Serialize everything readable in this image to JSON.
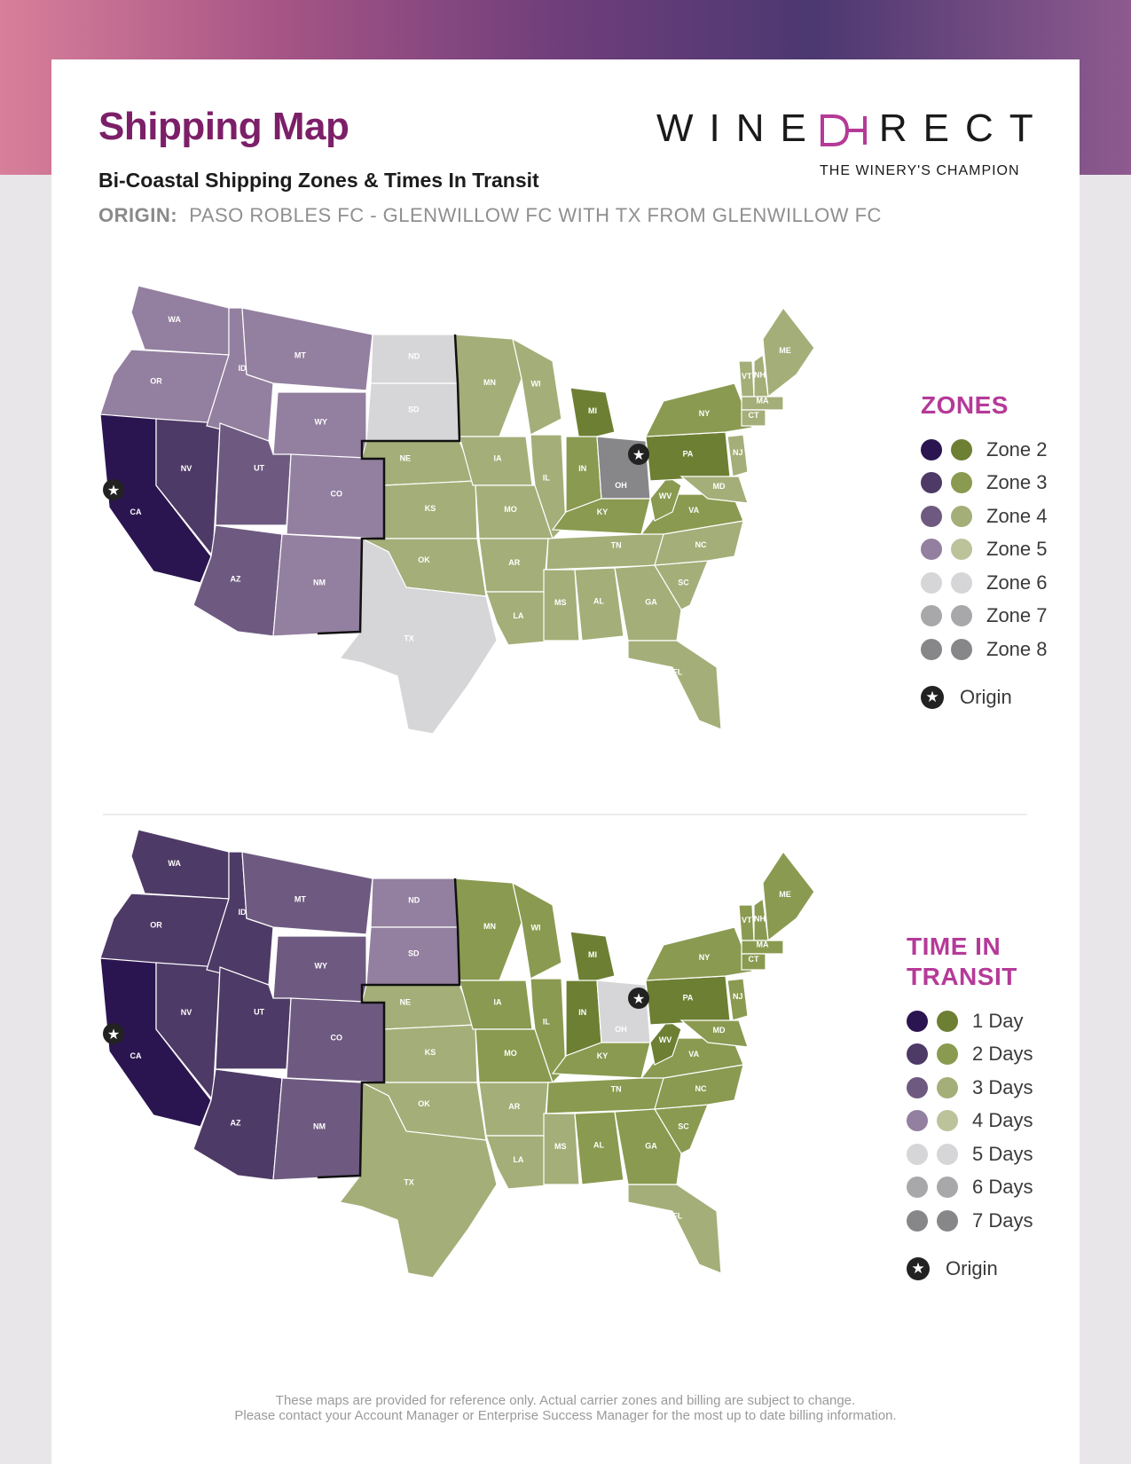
{
  "header": {
    "title": "Shipping Map",
    "subtitle": "Bi-Coastal Shipping Zones & Times In Transit",
    "origin_label": "ORIGIN:",
    "origin_value": "PASO ROBLES FC - GLENWILLOW FC WITH TX FROM GLENWILLOW FC",
    "logo_left": "WINE",
    "logo_right": "RECT",
    "tagline": "THE WINERY'S CHAMPION"
  },
  "colors": {
    "purple": [
      "#2b1550",
      "#4e3a66",
      "#6e5a80",
      "#937f9f"
    ],
    "green": [
      "#6d7f33",
      "#8a9a50",
      "#a4ae78",
      "#bcc39b"
    ],
    "gray": [
      "#d6d6d8",
      "#a8a8ab",
      "#87878a"
    ],
    "accent": "#b53a98",
    "title": "#7c1f68"
  },
  "zones_legend": {
    "title": "ZONES",
    "items": [
      {
        "label": "Zone 2",
        "left": "#2b1550",
        "right": "#6d7f33"
      },
      {
        "label": "Zone 3",
        "left": "#4e3a66",
        "right": "#8a9a50"
      },
      {
        "label": "Zone 4",
        "left": "#6e5a80",
        "right": "#a4ae78"
      },
      {
        "label": "Zone 5",
        "left": "#937f9f",
        "right": "#bcc39b"
      },
      {
        "label": "Zone 6",
        "left": "#d6d6d8",
        "right": "#d6d6d8"
      },
      {
        "label": "Zone 7",
        "left": "#a8a8ab",
        "right": "#a8a8ab"
      },
      {
        "label": "Zone 8",
        "left": "#87878a",
        "right": "#87878a"
      }
    ],
    "origin_label": "Origin"
  },
  "transit_legend": {
    "title": "TIME IN TRANSIT",
    "items": [
      {
        "label": "1 Day",
        "left": "#2b1550",
        "right": "#6d7f33"
      },
      {
        "label": "2 Days",
        "left": "#4e3a66",
        "right": "#8a9a50"
      },
      {
        "label": "3 Days",
        "left": "#6e5a80",
        "right": "#a4ae78"
      },
      {
        "label": "4 Days",
        "left": "#937f9f",
        "right": "#bcc39b"
      },
      {
        "label": "5 Days",
        "left": "#d6d6d8",
        "right": "#d6d6d8"
      },
      {
        "label": "6 Days",
        "left": "#a8a8ab",
        "right": "#a8a8ab"
      },
      {
        "label": "7 Days",
        "left": "#87878a",
        "right": "#87878a"
      }
    ],
    "origin_label": "Origin"
  },
  "zone_map": {
    "origins": [
      "CA",
      "OH"
    ],
    "states": [
      {
        "code": "WA",
        "zone": 5
      },
      {
        "code": "OR",
        "zone": 5
      },
      {
        "code": "CA",
        "zone": 2
      },
      {
        "code": "NV",
        "zone": 3
      },
      {
        "code": "ID",
        "zone": 5
      },
      {
        "code": "MT",
        "zone": 5
      },
      {
        "code": "WY",
        "zone": 5
      },
      {
        "code": "UT",
        "zone": 4
      },
      {
        "code": "AZ",
        "zone": 4
      },
      {
        "code": "CO",
        "zone": 5
      },
      {
        "code": "NM",
        "zone": 5
      },
      {
        "code": "ND",
        "zone": 6
      },
      {
        "code": "SD",
        "zone": 6
      },
      {
        "code": "NE",
        "zone": 4
      },
      {
        "code": "KS",
        "zone": 4
      },
      {
        "code": "OK",
        "zone": 4
      },
      {
        "code": "TX",
        "zone": 6
      },
      {
        "code": "MN",
        "zone": 4
      },
      {
        "code": "IA",
        "zone": 4
      },
      {
        "code": "MO",
        "zone": 4
      },
      {
        "code": "AR",
        "zone": 4
      },
      {
        "code": "LA",
        "zone": 4
      },
      {
        "code": "WI",
        "zone": 4
      },
      {
        "code": "IL",
        "zone": 4
      },
      {
        "code": "MI",
        "zone": 2
      },
      {
        "code": "IN",
        "zone": 3
      },
      {
        "code": "OH",
        "zone": 8
      },
      {
        "code": "KY",
        "zone": 3
      },
      {
        "code": "TN",
        "zone": 4
      },
      {
        "code": "MS",
        "zone": 4
      },
      {
        "code": "AL",
        "zone": 4
      },
      {
        "code": "GA",
        "zone": 4
      },
      {
        "code": "FL",
        "zone": 4
      },
      {
        "code": "SC",
        "zone": 4
      },
      {
        "code": "NC",
        "zone": 4
      },
      {
        "code": "VA",
        "zone": 3
      },
      {
        "code": "WV",
        "zone": 3
      },
      {
        "code": "PA",
        "zone": 2
      },
      {
        "code": "NY",
        "zone": 3
      },
      {
        "code": "MD",
        "zone": 4
      },
      {
        "code": "NJ",
        "zone": 4
      },
      {
        "code": "VT",
        "zone": 4
      },
      {
        "code": "NH",
        "zone": 4
      },
      {
        "code": "ME",
        "zone": 4
      },
      {
        "code": "MA",
        "zone": 4
      },
      {
        "code": "CT",
        "zone": 4
      }
    ]
  },
  "transit_map": {
    "origins": [
      "CA",
      "OH"
    ],
    "states": [
      {
        "code": "WA",
        "days": 2
      },
      {
        "code": "OR",
        "days": 2
      },
      {
        "code": "CA",
        "days": 1
      },
      {
        "code": "NV",
        "days": 2
      },
      {
        "code": "ID",
        "days": 2
      },
      {
        "code": "MT",
        "days": 3
      },
      {
        "code": "WY",
        "days": 3
      },
      {
        "code": "UT",
        "days": 2
      },
      {
        "code": "AZ",
        "days": 2
      },
      {
        "code": "CO",
        "days": 3
      },
      {
        "code": "NM",
        "days": 3
      },
      {
        "code": "ND",
        "days": 4
      },
      {
        "code": "SD",
        "days": 4
      },
      {
        "code": "NE",
        "days": 3
      },
      {
        "code": "KS",
        "days": 3
      },
      {
        "code": "OK",
        "days": 3
      },
      {
        "code": "TX",
        "days": 3
      },
      {
        "code": "MN",
        "days": 2
      },
      {
        "code": "IA",
        "days": 2
      },
      {
        "code": "MO",
        "days": 2
      },
      {
        "code": "AR",
        "days": 3
      },
      {
        "code": "LA",
        "days": 3
      },
      {
        "code": "WI",
        "days": 2
      },
      {
        "code": "IL",
        "days": 2
      },
      {
        "code": "MI",
        "days": 1
      },
      {
        "code": "IN",
        "days": 1
      },
      {
        "code": "OH",
        "days": 5
      },
      {
        "code": "KY",
        "days": 2
      },
      {
        "code": "TN",
        "days": 2
      },
      {
        "code": "MS",
        "days": 3
      },
      {
        "code": "AL",
        "days": 2
      },
      {
        "code": "GA",
        "days": 2
      },
      {
        "code": "FL",
        "days": 3
      },
      {
        "code": "SC",
        "days": 2
      },
      {
        "code": "NC",
        "days": 2
      },
      {
        "code": "VA",
        "days": 2
      },
      {
        "code": "WV",
        "days": 1
      },
      {
        "code": "PA",
        "days": 1
      },
      {
        "code": "NY",
        "days": 2
      },
      {
        "code": "MD",
        "days": 2
      },
      {
        "code": "NJ",
        "days": 2
      },
      {
        "code": "VT",
        "days": 2
      },
      {
        "code": "NH",
        "days": 2
      },
      {
        "code": "ME",
        "days": 2
      },
      {
        "code": "MA",
        "days": 2
      },
      {
        "code": "CT",
        "days": 2
      }
    ]
  },
  "footer": {
    "line1": "These maps are provided for reference only. Actual carrier zones and billing are subject to change.",
    "line2": "Please contact your Account Manager or Enterprise Success Manager for the most up to date billing information."
  }
}
